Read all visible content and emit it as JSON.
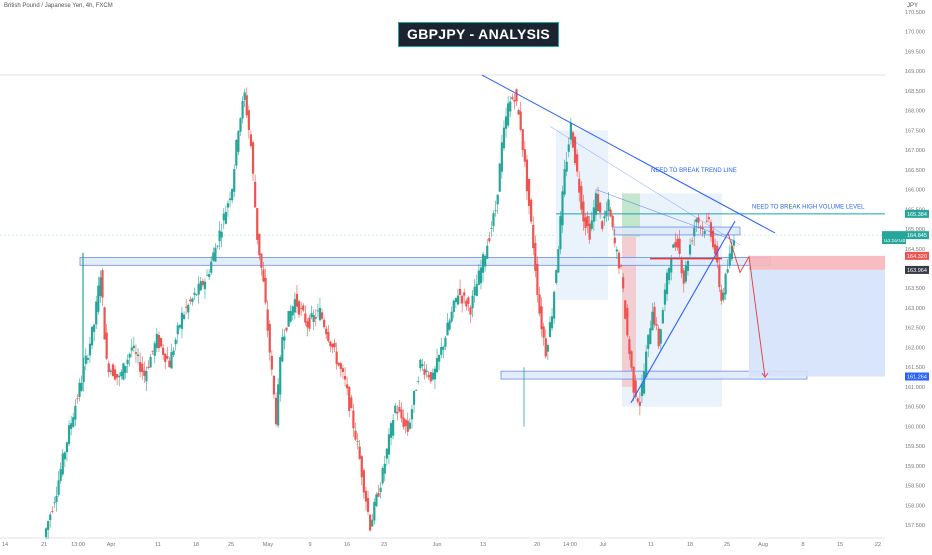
{
  "header": {
    "symbol": "British Pound / Japanese Yen, 4h, FXCM",
    "currency": "JPY"
  },
  "chart_data": {
    "type": "candlestick",
    "title": "GBPJPY - ANALYSIS",
    "ylim": [
      157.2,
      170.8
    ],
    "y_ticks": [
      157.5,
      158.0,
      158.5,
      159.0,
      159.5,
      160.0,
      160.5,
      161.0,
      161.5,
      162.0,
      162.5,
      163.0,
      163.5,
      164.0,
      164.5,
      165.0,
      165.5,
      166.0,
      166.5,
      167.0,
      167.5,
      168.0,
      168.5,
      169.0,
      169.5,
      170.0,
      170.5
    ],
    "x_ticks": [
      "14",
      "21",
      "13:00",
      "Apr",
      "11",
      "18",
      "25",
      "May",
      "9",
      "16",
      "23",
      "Jun",
      "13",
      "20",
      "14:00",
      "Jul",
      "11",
      "18",
      "25",
      "Aug",
      "8",
      "15",
      "22"
    ],
    "price_labels": [
      {
        "text": "165.384",
        "value": 165.384,
        "color": "#26a69a"
      },
      {
        "text": "164.845",
        "value": 164.845,
        "color": "#26a69a"
      },
      {
        "text": "03:59:08",
        "value": 164.72,
        "color": "#26a69a"
      },
      {
        "text": "164.320",
        "value": 164.32,
        "color": "#ef5350"
      },
      {
        "text": "163.964",
        "value": 163.964,
        "color": "#363a45"
      },
      {
        "text": "161.264",
        "value": 161.264,
        "color": "#2962ff"
      }
    ],
    "annotations": [
      {
        "text": "NEED TO BREAK TREND LINE"
      },
      {
        "text": "NEED TO BREAK HIGH VOLUME LEVEL"
      }
    ],
    "key_prices": {
      "resistance_line": 168.9,
      "high_volume_level": 165.384,
      "zone_top": 164.28,
      "zone_bottom": 164.08,
      "support_top": 161.4,
      "support_bottom": 161.2,
      "tp": 161.264,
      "sl_top": 164.32,
      "entry": 163.964
    },
    "price_path": [
      {
        "x": 0,
        "y": 157.2
      },
      {
        "x": 2,
        "y": 158.4
      },
      {
        "x": 4,
        "y": 159.9
      },
      {
        "x": 6,
        "y": 161.2
      },
      {
        "x": 8,
        "y": 162.6
      },
      {
        "x": 9,
        "y": 163.9
      },
      {
        "x": 10,
        "y": 161.6
      },
      {
        "x": 12,
        "y": 161.2
      },
      {
        "x": 14,
        "y": 162.0
      },
      {
        "x": 16,
        "y": 161.3
      },
      {
        "x": 18,
        "y": 162.2
      },
      {
        "x": 20,
        "y": 161.6
      },
      {
        "x": 22,
        "y": 162.8
      },
      {
        "x": 24,
        "y": 163.3
      },
      {
        "x": 26,
        "y": 163.8
      },
      {
        "x": 28,
        "y": 164.9
      },
      {
        "x": 30,
        "y": 166.1
      },
      {
        "x": 31,
        "y": 167.6
      },
      {
        "x": 32,
        "y": 168.4
      },
      {
        "x": 33,
        "y": 167.1
      },
      {
        "x": 34,
        "y": 164.8
      },
      {
        "x": 35,
        "y": 163.6
      },
      {
        "x": 36,
        "y": 161.9
      },
      {
        "x": 37,
        "y": 160.2
      },
      {
        "x": 38,
        "y": 162.3
      },
      {
        "x": 40,
        "y": 163.2
      },
      {
        "x": 42,
        "y": 162.6
      },
      {
        "x": 44,
        "y": 162.9
      },
      {
        "x": 46,
        "y": 162.0
      },
      {
        "x": 48,
        "y": 161.1
      },
      {
        "x": 50,
        "y": 159.5
      },
      {
        "x": 52,
        "y": 157.5
      },
      {
        "x": 54,
        "y": 158.8
      },
      {
        "x": 56,
        "y": 160.5
      },
      {
        "x": 58,
        "y": 159.9
      },
      {
        "x": 60,
        "y": 161.6
      },
      {
        "x": 62,
        "y": 161.2
      },
      {
        "x": 64,
        "y": 162.3
      },
      {
        "x": 66,
        "y": 163.4
      },
      {
        "x": 68,
        "y": 163.0
      },
      {
        "x": 70,
        "y": 164.2
      },
      {
        "x": 72,
        "y": 165.5
      },
      {
        "x": 73,
        "y": 167.1
      },
      {
        "x": 74,
        "y": 168.1
      },
      {
        "x": 75,
        "y": 168.4
      },
      {
        "x": 76,
        "y": 167.6
      },
      {
        "x": 77,
        "y": 166.1
      },
      {
        "x": 78,
        "y": 164.6
      },
      {
        "x": 79,
        "y": 162.9
      },
      {
        "x": 80,
        "y": 161.9
      },
      {
        "x": 81,
        "y": 162.9
      },
      {
        "x": 82,
        "y": 164.6
      },
      {
        "x": 83,
        "y": 166.4
      },
      {
        "x": 84,
        "y": 167.6
      },
      {
        "x": 85,
        "y": 166.4
      },
      {
        "x": 86,
        "y": 165.3
      },
      {
        "x": 87,
        "y": 164.9
      },
      {
        "x": 88,
        "y": 165.8
      },
      {
        "x": 89,
        "y": 165.1
      },
      {
        "x": 90,
        "y": 165.6
      },
      {
        "x": 91,
        "y": 164.6
      },
      {
        "x": 92,
        "y": 163.9
      },
      {
        "x": 93,
        "y": 162.3
      },
      {
        "x": 94,
        "y": 161.0
      },
      {
        "x": 95,
        "y": 160.6
      },
      {
        "x": 96,
        "y": 161.8
      },
      {
        "x": 97,
        "y": 163.0
      },
      {
        "x": 98,
        "y": 162.1
      },
      {
        "x": 99,
        "y": 163.4
      },
      {
        "x": 100,
        "y": 164.4
      },
      {
        "x": 101,
        "y": 164.7
      },
      {
        "x": 102,
        "y": 163.7
      },
      {
        "x": 103,
        "y": 164.6
      },
      {
        "x": 104,
        "y": 165.3
      },
      {
        "x": 105,
        "y": 165.0
      },
      {
        "x": 106,
        "y": 165.2
      },
      {
        "x": 107,
        "y": 164.4
      },
      {
        "x": 108,
        "y": 163.2
      },
      {
        "x": 109,
        "y": 164.0
      },
      {
        "x": 110,
        "y": 164.845
      }
    ]
  }
}
